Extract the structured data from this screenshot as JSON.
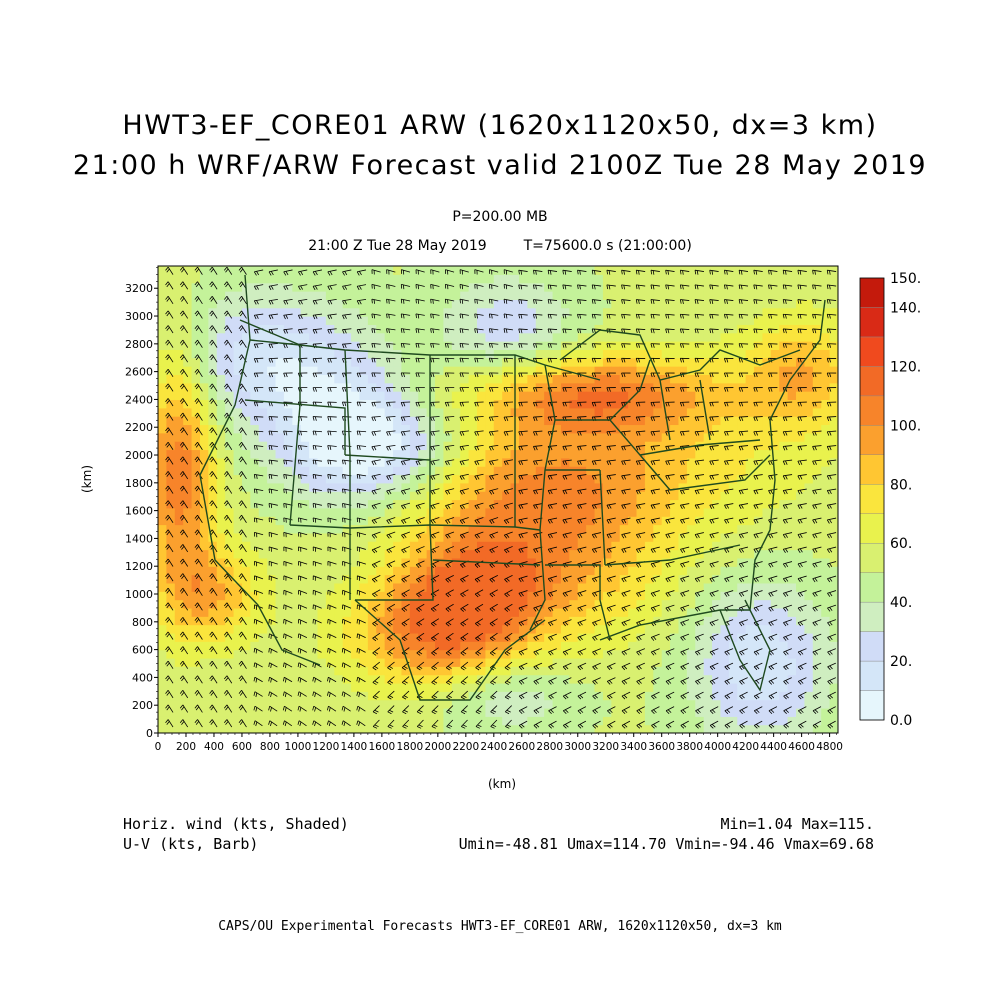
{
  "header": {
    "title_line1": "HWT3-EF_CORE01 ARW (1620x1120x50, dx=3 km)",
    "title_line2": "21:00 h WRF/ARW Forecast valid 2100Z Tue 28 May 2019",
    "level": "P=200.00 MB",
    "valid_time": "21:00 Z Tue 28 May 2019",
    "time_seconds": "T=75600.0 s (21:00:00)"
  },
  "axes": {
    "x_label": "(km)",
    "y_label": "(km)",
    "x_ticks": [
      "0",
      "200",
      "400",
      "600",
      "800",
      "1000",
      "1200",
      "1400",
      "1600",
      "1800",
      "2000",
      "2200",
      "2400",
      "2600",
      "2800",
      "3000",
      "3200",
      "3400",
      "3600",
      "3800",
      "4000",
      "4200",
      "4400",
      "4600",
      "4800"
    ],
    "y_ticks": [
      "0",
      "200",
      "400",
      "600",
      "800",
      "1000",
      "1200",
      "1400",
      "1600",
      "1800",
      "2000",
      "2200",
      "2400",
      "2600",
      "2800",
      "3000",
      "3200"
    ],
    "x_range": [
      0,
      4860
    ],
    "y_range": [
      0,
      3360
    ]
  },
  "colorbar": {
    "labels": [
      "0.0",
      "20.",
      "40.",
      "60.",
      "80.",
      "100.",
      "120.",
      "140.",
      "150."
    ],
    "levels": [
      0,
      10,
      20,
      30,
      40,
      50,
      60,
      70,
      80,
      90,
      100,
      110,
      120,
      130,
      140,
      150
    ],
    "colors": [
      "#e6f6fc",
      "#d4e6f8",
      "#d0dcf7",
      "#cfeec0",
      "#c4f29a",
      "#d9f070",
      "#e9f24d",
      "#fae53d",
      "#ffc632",
      "#fba02e",
      "#f7842a",
      "#f26a26",
      "#f04a1e",
      "#d92a16",
      "#c41a0c"
    ]
  },
  "stats": {
    "field1_label": "Horiz. wind (kts, Shaded)",
    "field2_label": "U-V (kts, Barb)",
    "minmax": "Min=1.04 Max=115.",
    "uv_stats": "Umin=-48.81 Umax=114.70 Vmin=-94.46 Vmax=69.68"
  },
  "footer": {
    "credit": "CAPS/OU Experimental Forecasts  HWT3-EF_CORE01 ARW, 1620x1120x50, dx=3 km"
  },
  "map": {
    "boundary_color": "#1f4a1f",
    "barb_color": "#000000"
  }
}
